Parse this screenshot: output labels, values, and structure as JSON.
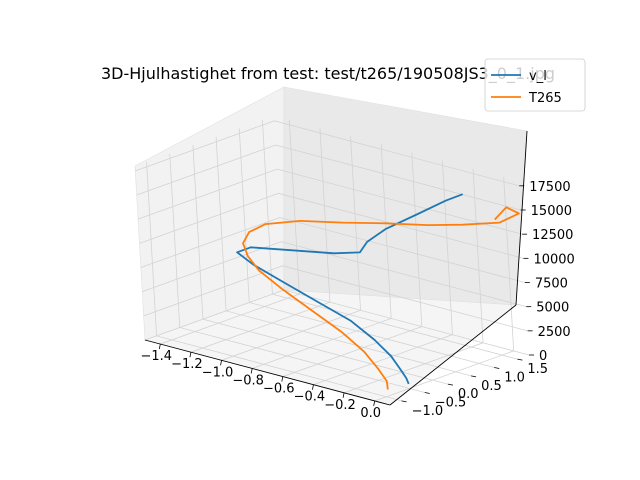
{
  "chart_data": {
    "type": "line",
    "title": "3D-Hjulhastighet from test: test/t265/190508JS3_0_1.jpg",
    "xlabel": "",
    "ylabel": "",
    "zlabel": "",
    "x_ticks": [
      "−1.4",
      "−1.2",
      "−1.0",
      "−0.8",
      "−0.6",
      "−0.4",
      "−0.2",
      "0.0"
    ],
    "y_ticks": [
      "−1.0",
      "−0.5",
      "0.0",
      "0.5",
      "1.0",
      "1.5"
    ],
    "z_ticks": [
      "0",
      "2500",
      "5000",
      "7500",
      "10000",
      "12500",
      "15000",
      "17500"
    ],
    "xlim": [
      -1.5,
      0.1
    ],
    "ylim": [
      -1.25,
      1.75
    ],
    "zlim": [
      0,
      18000
    ],
    "grid": true,
    "legend_position": "top-right",
    "series": [
      {
        "name": "v_l",
        "color": "#1f77b4",
        "x": [
          -0.05,
          -0.08,
          -0.15,
          -0.25,
          -0.4,
          -0.6,
          -0.85,
          -1.1,
          -1.3,
          -1.42,
          -1.35,
          -1.1,
          -0.85,
          -0.7,
          -0.68,
          -0.6,
          -0.45,
          -0.3,
          -0.2
        ],
        "y": [
          -0.35,
          -0.3,
          -0.2,
          -0.05,
          0.1,
          0.25,
          0.35,
          0.45,
          0.5,
          0.55,
          0.62,
          0.7,
          0.78,
          0.85,
          0.95,
          1.1,
          1.3,
          1.45,
          1.5
        ],
        "z": [
          0,
          400,
          900,
          1500,
          2300,
          3200,
          4000,
          4800,
          5600,
          6300,
          7000,
          7600,
          8200,
          8800,
          9800,
          11200,
          13000,
          14800,
          15800
        ]
      },
      {
        "name": "T265",
        "color": "#ff7f0e",
        "x": [
          -0.05,
          -0.1,
          -0.2,
          -0.35,
          -0.55,
          -0.8,
          -1.05,
          -1.25,
          -1.35,
          -1.4,
          -1.38,
          -1.3,
          -1.1,
          -0.85,
          -0.6,
          -0.35,
          -0.15,
          0.05,
          0.15,
          0.1,
          0.05
        ],
        "y": [
          -0.8,
          -0.65,
          -0.5,
          -0.3,
          -0.1,
          0.1,
          0.3,
          0.45,
          0.55,
          0.62,
          0.7,
          0.8,
          0.9,
          1.0,
          1.1,
          1.2,
          1.3,
          1.45,
          1.55,
          1.45,
          1.35
        ],
        "z": [
          200,
          600,
          1200,
          2000,
          2800,
          3600,
          4400,
          5300,
          6200,
          7200,
          8300,
          9300,
          10300,
          11000,
          11800,
          12500,
          13200,
          14000,
          15200,
          15800,
          14500
        ]
      }
    ]
  }
}
